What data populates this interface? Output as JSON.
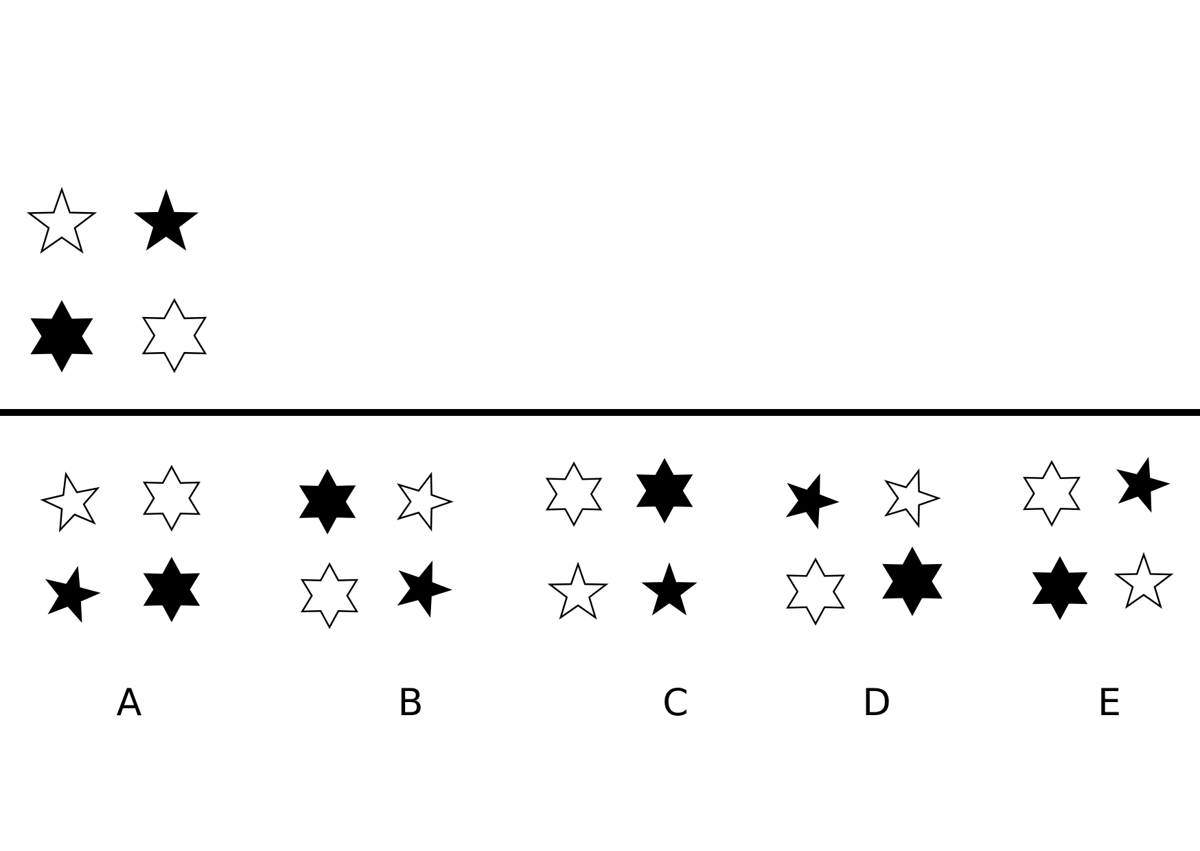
{
  "colors": {
    "background": "#ffffff",
    "ink": "#000000"
  },
  "question": {
    "stars": [
      {
        "points": 5,
        "fill": "white"
      },
      {
        "points": 5,
        "fill": "black"
      },
      {
        "points": 6,
        "fill": "black"
      },
      {
        "points": 6,
        "fill": "white"
      }
    ]
  },
  "options": [
    {
      "label": "A",
      "stars": [
        {
          "points": 5,
          "fill": "white"
        },
        {
          "points": 6,
          "fill": "white"
        },
        {
          "points": 5,
          "fill": "black"
        },
        {
          "points": 6,
          "fill": "black"
        }
      ]
    },
    {
      "label": "B",
      "stars": [
        {
          "points": 6,
          "fill": "black"
        },
        {
          "points": 5,
          "fill": "white"
        },
        {
          "points": 6,
          "fill": "white"
        },
        {
          "points": 5,
          "fill": "black"
        }
      ]
    },
    {
      "label": "C",
      "stars": [
        {
          "points": 6,
          "fill": "white"
        },
        {
          "points": 6,
          "fill": "black"
        },
        {
          "points": 5,
          "fill": "white"
        },
        {
          "points": 5,
          "fill": "black"
        }
      ]
    },
    {
      "label": "D",
      "stars": [
        {
          "points": 5,
          "fill": "black"
        },
        {
          "points": 5,
          "fill": "white"
        },
        {
          "points": 6,
          "fill": "white"
        },
        {
          "points": 6,
          "fill": "black"
        }
      ]
    },
    {
      "label": "E",
      "stars": [
        {
          "points": 6,
          "fill": "white"
        },
        {
          "points": 5,
          "fill": "black"
        },
        {
          "points": 6,
          "fill": "black"
        },
        {
          "points": 5,
          "fill": "white"
        }
      ]
    }
  ]
}
